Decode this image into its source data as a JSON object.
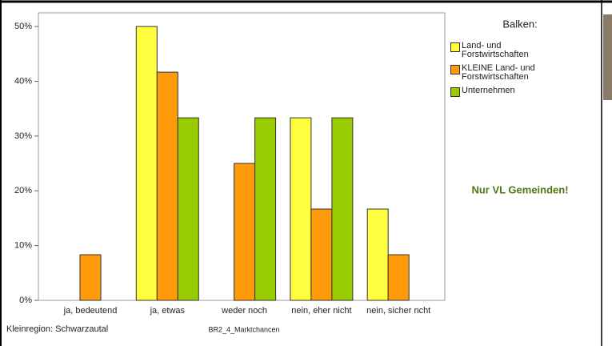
{
  "chart_data": {
    "type": "bar",
    "legend_title": "Balken:",
    "annotation": "Nur VL Gemeinden!",
    "footnote": "Kleinregion: Schwarzautal",
    "x_label": "BR2_4_Marktchancen",
    "categories": [
      "ja, bedeutend",
      "ja, etwas",
      "weder noch",
      "nein, eher nicht",
      "nein, sicher ncht"
    ],
    "series": [
      {
        "name": "Land- und Forstwirtschaften",
        "color": "#ffff40",
        "values": [
          0,
          50,
          0,
          33.33,
          16.67
        ]
      },
      {
        "name": "KLEINE Land- und Forstwirtschaften",
        "color": "#ff9a0a",
        "values": [
          8.33,
          41.67,
          25,
          16.67,
          8.33
        ]
      },
      {
        "name": "Unternehmen",
        "color": "#99cc00",
        "values": [
          0,
          33.33,
          33.33,
          33.33,
          0
        ]
      }
    ],
    "ylim": [
      0,
      52.5
    ],
    "yticks": [
      {
        "value": 0,
        "label": "0%"
      },
      {
        "value": 10,
        "label": "10%"
      },
      {
        "value": 20,
        "label": "20%"
      },
      {
        "value": 30,
        "label": "30%"
      },
      {
        "value": 40,
        "label": "40%"
      },
      {
        "value": 50,
        "label": "50%"
      }
    ],
    "grid": false
  }
}
